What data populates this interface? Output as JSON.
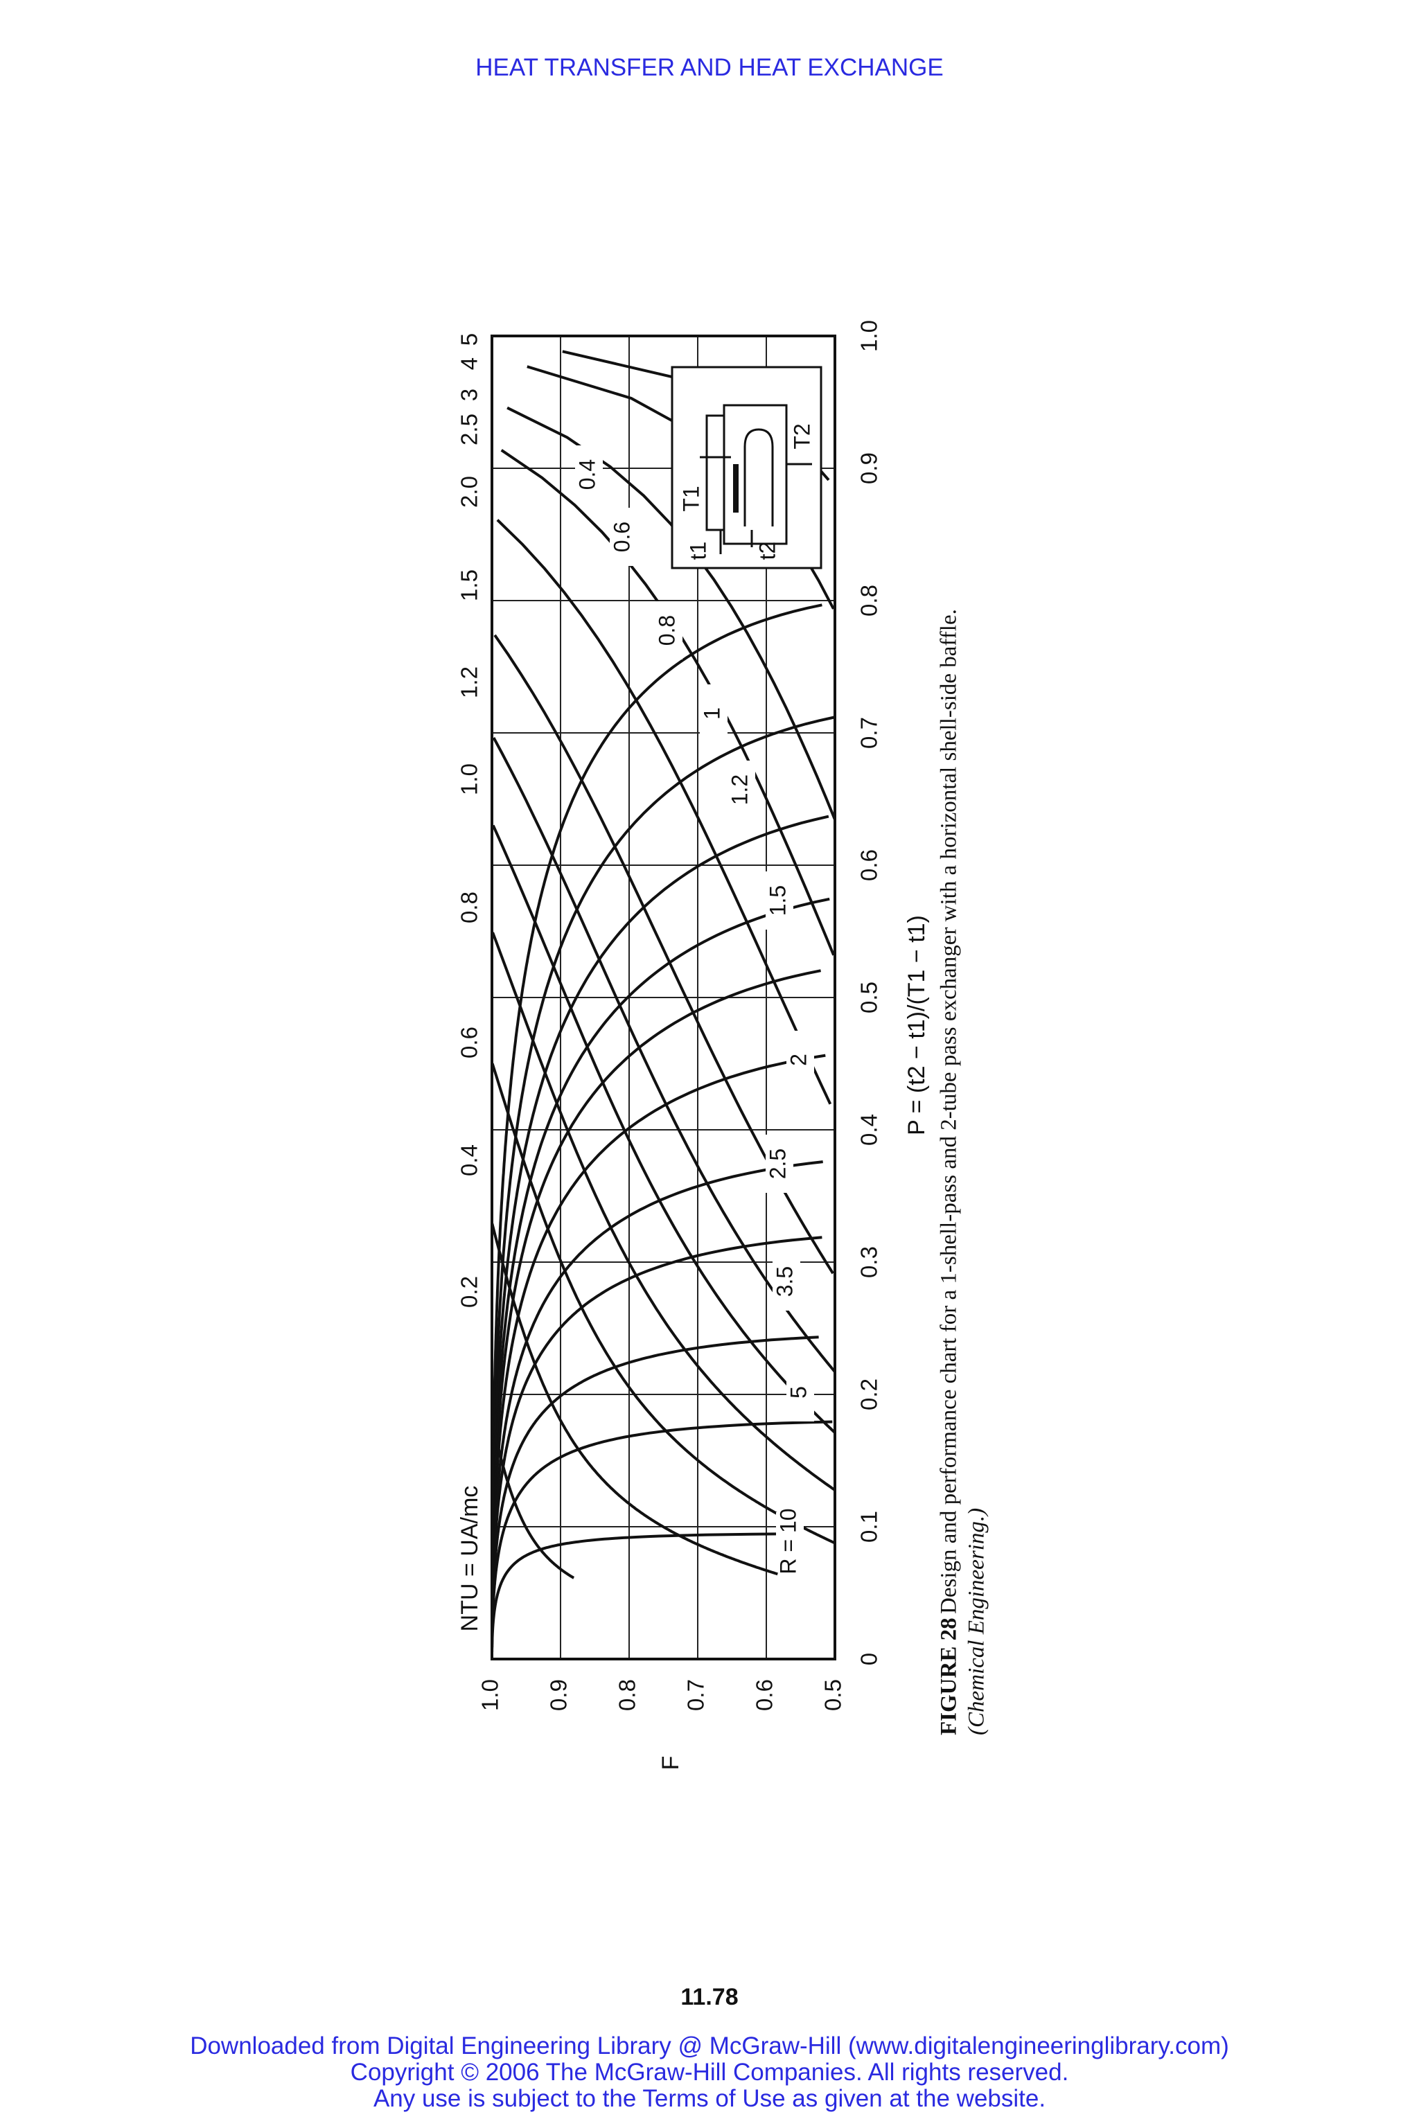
{
  "header": "HEAT TRANSFER AND HEAT EXCHANGE",
  "page_number": "11.78",
  "footer": [
    "Downloaded from Digital Engineering Library @ McGraw-Hill (www.digitalengineeringlibrary.com)",
    "Copyright © 2006 The McGraw-Hill Companies. All rights reserved.",
    "Any use is subject to the Terms of Use as given at the website."
  ],
  "caption": {
    "figure": "FIGURE 28",
    "text": "Design and performance chart for a 1-shell-pass and 2-tube pass exchanger with a horizontal shell-side baffle.",
    "source": "(Chemical Engineering.)"
  },
  "chart_data": {
    "type": "line",
    "orientation": "rotated 90° counter-clockwise on page",
    "xlabel": "P = (t2 − t1)/(T1 − t1)",
    "ylabel": "F",
    "top_axis_label": "NTU = UA/mc",
    "xlim": [
      0,
      1.0
    ],
    "ylim": [
      0.5,
      1.0
    ],
    "x_ticks": [
      "0",
      "0.1",
      "0.2",
      "0.3",
      "0.4",
      "0.5",
      "0.6",
      "0.7",
      "0.8",
      "0.9",
      "1.0"
    ],
    "y_ticks": [
      "0.5",
      "0.6",
      "0.7",
      "0.8",
      "0.9",
      "1.0"
    ],
    "grid": true,
    "r_curves": [
      {
        "label": "R = 10",
        "r": 10
      },
      {
        "label": "5",
        "r": 5
      },
      {
        "label": "3.5",
        "r": 3.5
      },
      {
        "label": "2.5",
        "r": 2.5
      },
      {
        "label": "2",
        "r": 2
      },
      {
        "label": "1.5",
        "r": 1.5
      },
      {
        "label": "1.2",
        "r": 1.2
      },
      {
        "label": "1",
        "r": 1
      },
      {
        "label": "0.8",
        "r": 0.8
      },
      {
        "label": "0.6",
        "r": 0.6
      },
      {
        "label": "0.4",
        "r": 0.4
      }
    ],
    "ntu_curves": [
      {
        "label": "0.2",
        "ntu": 0.2
      },
      {
        "label": "0.4",
        "ntu": 0.4
      },
      {
        "label": "0.6",
        "ntu": 0.6
      },
      {
        "label": "0.8",
        "ntu": 0.8
      },
      {
        "label": "1.0",
        "ntu": 1.0
      },
      {
        "label": "1.2",
        "ntu": 1.2
      },
      {
        "label": "1.5",
        "ntu": 1.5
      },
      {
        "label": "2.0",
        "ntu": 2.0
      },
      {
        "label": "2.5",
        "ntu": 2.5
      },
      {
        "label": "3",
        "ntu": 3
      },
      {
        "label": "4",
        "ntu": 4
      },
      {
        "label": "5",
        "ntu": 5
      }
    ],
    "inset": {
      "labels": [
        "T1",
        "t1",
        "t2",
        "T2"
      ]
    }
  }
}
